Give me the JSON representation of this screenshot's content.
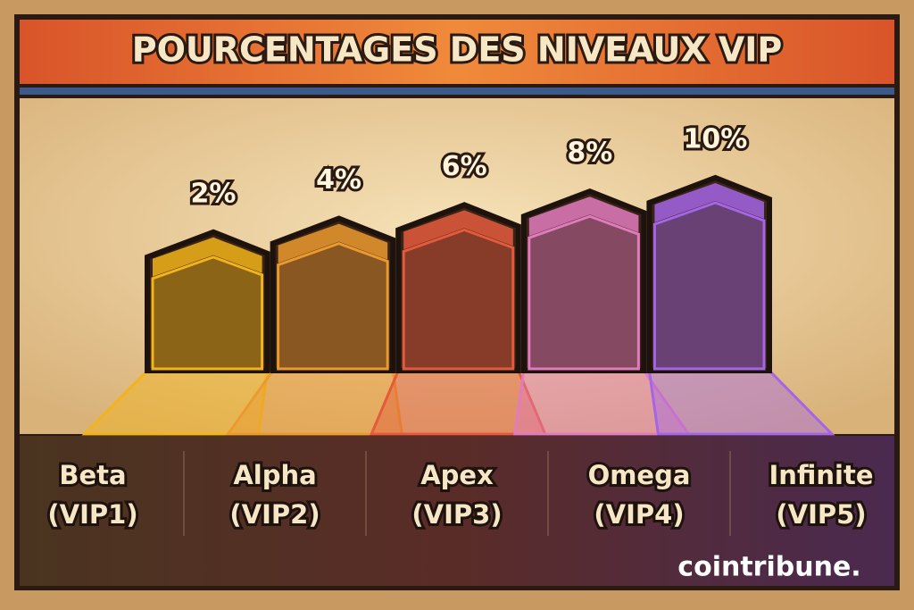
{
  "chart_data": {
    "type": "bar",
    "title": "POURCENTAGES DES NIVEAUX VIP",
    "categories": [
      "Beta",
      "Alpha",
      "Apex",
      "Omega",
      "Infinite"
    ],
    "levels": [
      "(VIP1)",
      "(VIP2)",
      "(VIP3)",
      "(VIP4)",
      "(VIP5)"
    ],
    "values": [
      2,
      4,
      6,
      8,
      10
    ],
    "value_labels": [
      "2%",
      "4%",
      "6%",
      "8%",
      "10%"
    ],
    "colors": [
      "#f2b419",
      "#eb9a2e",
      "#e45a3c",
      "#e27bbd",
      "#a565e6"
    ],
    "watermark": "cointribune."
  }
}
